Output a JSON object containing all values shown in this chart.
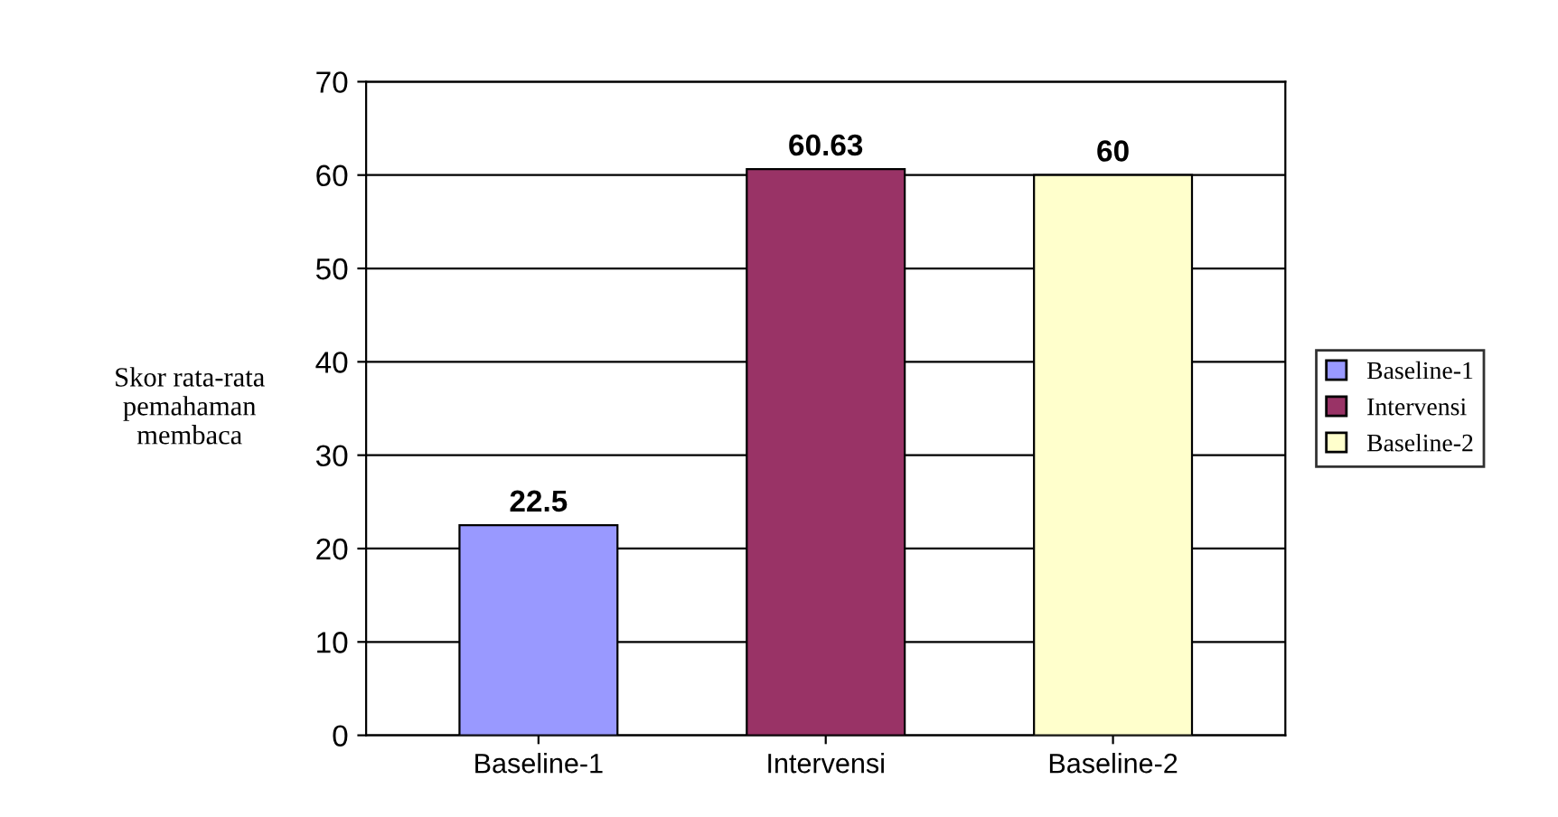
{
  "chart_data": {
    "type": "bar",
    "ylabel": "Skor rata-rata\npemahaman\nmembaca",
    "categories": [
      "Baseline-1",
      "Intervensi",
      "Baseline-2"
    ],
    "series": [
      {
        "name": "Baseline-1",
        "color": "#9999ff",
        "values": [
          22.5,
          null,
          null
        ]
      },
      {
        "name": "Intervensi",
        "color": "#993366",
        "values": [
          null,
          60.63,
          null
        ]
      },
      {
        "name": "Baseline-2",
        "color": "#ffffcc",
        "values": [
          null,
          null,
          60
        ]
      }
    ],
    "ylim": [
      0,
      70
    ],
    "yticks": [
      0,
      10,
      20,
      30,
      40,
      50,
      60,
      70
    ],
    "grid": "y",
    "legend": "right",
    "data_labels": true
  }
}
